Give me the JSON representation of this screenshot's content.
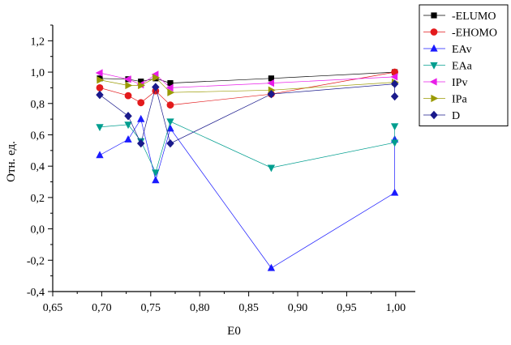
{
  "chart_data": {
    "type": "line",
    "xlabel": "E0",
    "ylabel": "Отн. ед.",
    "xlim": [
      0.65,
      1.02
    ],
    "ylim": [
      -0.4,
      1.3
    ],
    "x_ticks": [
      "0,65",
      "0,70",
      "0,75",
      "0,80",
      "0,85",
      "0,90",
      "0,95",
      "1,00"
    ],
    "x_tick_values": [
      0.65,
      0.7,
      0.75,
      0.8,
      0.85,
      0.9,
      0.95,
      1.0
    ],
    "y_ticks": [
      "-0,4",
      "-0,2",
      "0,0",
      "0,2",
      "0,4",
      "0,6",
      "0,8",
      "1,0",
      "1,2"
    ],
    "y_tick_values": [
      -0.4,
      -0.2,
      0.0,
      0.2,
      0.4,
      0.6,
      0.8,
      1.0,
      1.2
    ],
    "grid": false,
    "legend_position": "top-right",
    "series": [
      {
        "name": "-ELUMO",
        "color": "#000000",
        "marker": "square",
        "points": [
          [
            0.698,
            0.96
          ],
          [
            0.727,
            0.955
          ],
          [
            0.74,
            0.94
          ],
          [
            0.755,
            0.96
          ],
          [
            0.77,
            0.93
          ],
          [
            0.873,
            0.96
          ],
          [
            0.999,
            1.0
          ]
        ]
      },
      {
        "name": "-EHOMO",
        "color": "#e31a1c",
        "marker": "circle",
        "points": [
          [
            0.698,
            0.9
          ],
          [
            0.727,
            0.85
          ],
          [
            0.74,
            0.805
          ],
          [
            0.755,
            0.88
          ],
          [
            0.77,
            0.79
          ],
          [
            0.873,
            0.86
          ],
          [
            0.999,
            1.0
          ]
        ]
      },
      {
        "name": "EAv",
        "color": "#1a1aff",
        "marker": "triangle-up",
        "points": [
          [
            0.698,
            0.47
          ],
          [
            0.727,
            0.57
          ],
          [
            0.74,
            0.7
          ],
          [
            0.755,
            0.31
          ],
          [
            0.77,
            0.64
          ],
          [
            0.873,
            -0.25
          ],
          [
            0.999,
            0.23
          ],
          [
            0.999,
            0.57
          ]
        ]
      },
      {
        "name": "EAa",
        "color": "#009e8f",
        "marker": "triangle-down",
        "points": [
          [
            0.698,
            0.65
          ],
          [
            0.727,
            0.665
          ],
          [
            0.74,
            0.56
          ],
          [
            0.755,
            0.36
          ],
          [
            0.77,
            0.685
          ],
          [
            0.873,
            0.39
          ],
          [
            0.999,
            0.55
          ],
          [
            0.999,
            0.655
          ]
        ]
      },
      {
        "name": "IPv",
        "color": "#e81ee8",
        "marker": "triangle-left",
        "points": [
          [
            0.698,
            0.995
          ],
          [
            0.727,
            0.955
          ],
          [
            0.74,
            0.92
          ],
          [
            0.755,
            0.985
          ],
          [
            0.77,
            0.9
          ],
          [
            0.873,
            0.93
          ],
          [
            0.999,
            0.97
          ]
        ]
      },
      {
        "name": "IPa",
        "color": "#9a9a00",
        "marker": "triangle-right",
        "points": [
          [
            0.698,
            0.95
          ],
          [
            0.727,
            0.915
          ],
          [
            0.74,
            0.915
          ],
          [
            0.755,
            0.965
          ],
          [
            0.77,
            0.87
          ],
          [
            0.873,
            0.885
          ],
          [
            0.999,
            0.935
          ]
        ]
      },
      {
        "name": "D",
        "color": "#1a1a8c",
        "marker": "diamond",
        "points": [
          [
            0.698,
            0.855
          ],
          [
            0.727,
            0.72
          ],
          [
            0.74,
            0.545
          ],
          [
            0.755,
            0.905
          ],
          [
            0.77,
            0.545
          ],
          [
            0.873,
            0.86
          ],
          [
            0.999,
            0.925
          ],
          [
            0.999,
            0.845
          ]
        ]
      }
    ]
  }
}
